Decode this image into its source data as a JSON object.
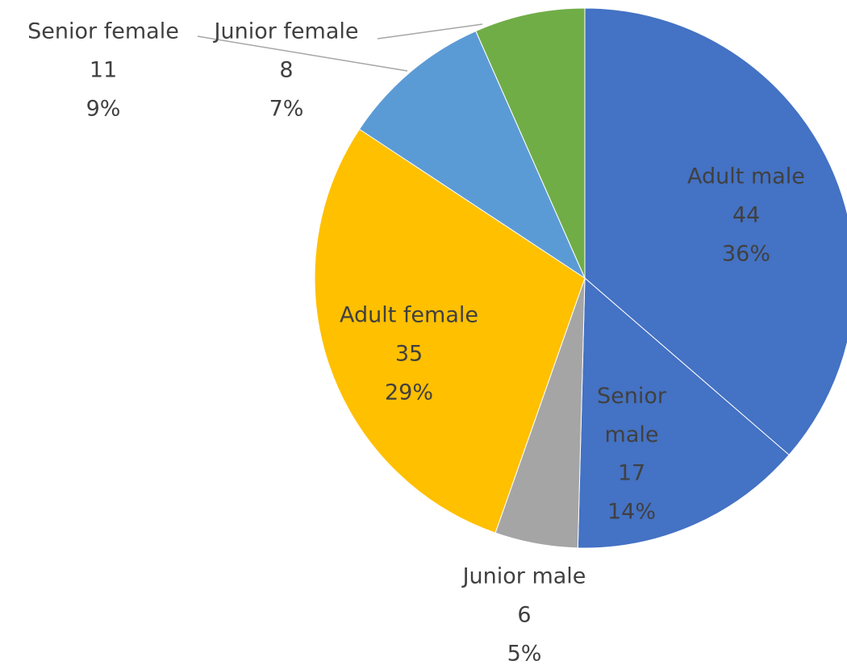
{
  "chart_data": {
    "type": "pie",
    "categories": [
      "Adult male",
      "Senior male",
      "Junior male",
      "Adult female",
      "Senior female",
      "Junior female"
    ],
    "values": [
      44,
      17,
      6,
      35,
      11,
      8
    ],
    "percent_labels": [
      "36%",
      "14%",
      "5%",
      "29%",
      "9%",
      "7%"
    ],
    "colors": [
      "#4472c4",
      "#4472c4",
      "#a5a5a5",
      "#ffc000",
      "#5b9bd5",
      "#70ad47"
    ]
  }
}
